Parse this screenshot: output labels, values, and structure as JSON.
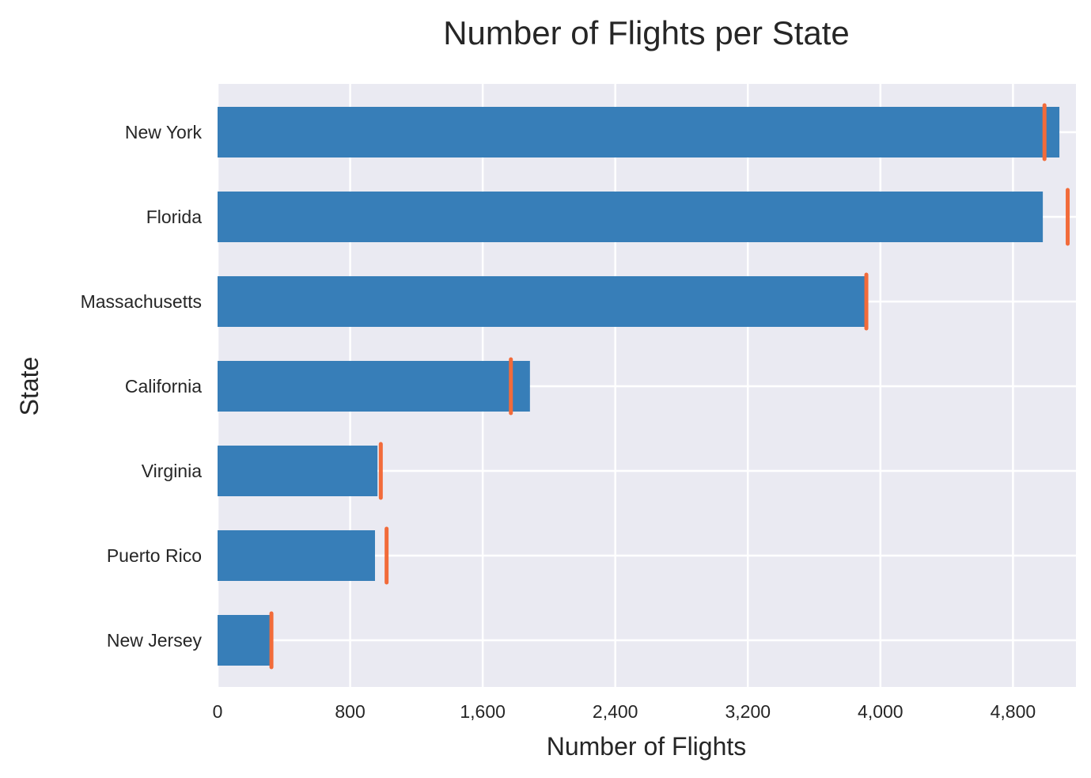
{
  "chart_data": {
    "type": "bar",
    "orientation": "horizontal",
    "title": "Number of Flights per State",
    "xlabel": "Number of Flights",
    "ylabel": "State",
    "categories": [
      "New York",
      "Florida",
      "Massachusetts",
      "California",
      "Virginia",
      "Puerto Rico",
      "New Jersey"
    ],
    "values": [
      5080,
      4980,
      3910,
      1885,
      965,
      950,
      320
    ],
    "markers": [
      4990,
      5130,
      3915,
      1770,
      985,
      1020,
      325
    ],
    "xlim": [
      0,
      5180
    ],
    "xticks": [
      0,
      800,
      1600,
      2400,
      3200,
      4000,
      4800
    ],
    "xtick_labels": [
      "0",
      "800",
      "1,600",
      "2,400",
      "3,200",
      "4,000",
      "4,800"
    ],
    "grid": true,
    "colors": {
      "background": "#EAEAF2",
      "grid": "#FFFFFF",
      "bar": "#377EB8",
      "marker": "#F26B3A",
      "text": "#262626"
    }
  }
}
